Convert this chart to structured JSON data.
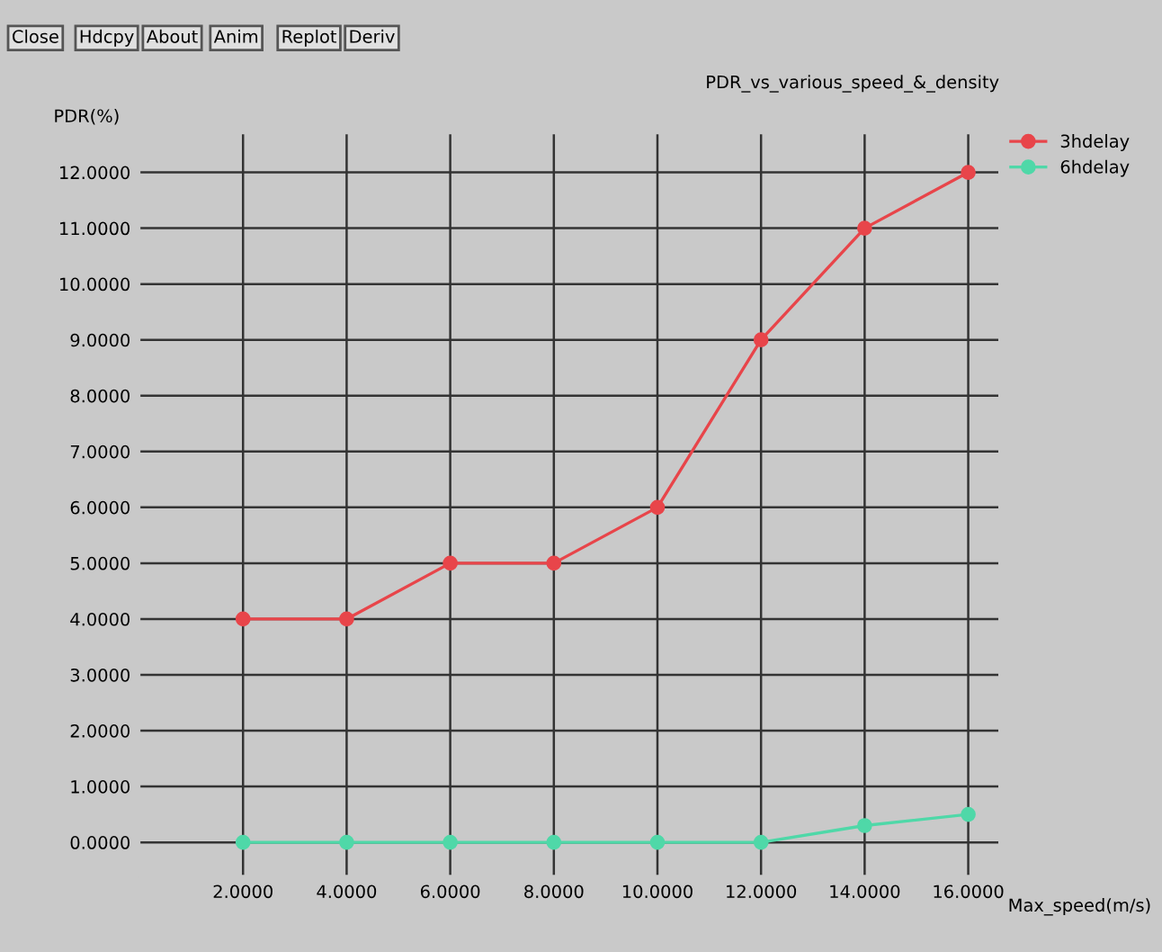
{
  "chart_data": {
    "type": "line",
    "title": "PDR_vs_various_speed_&_density",
    "xlabel": "Max_speed(m/s)",
    "ylabel": "PDR(%)",
    "x": [
      2,
      4,
      6,
      8,
      10,
      12,
      14,
      16
    ],
    "series": [
      {
        "name": "3hdelay",
        "color": "#e8454a",
        "values": [
          4,
          4,
          5,
          5,
          6,
          9,
          11,
          12
        ]
      },
      {
        "name": "6hdelay",
        "color": "#4fd8a8",
        "values": [
          0,
          0,
          0,
          0,
          0,
          0,
          0.3,
          0.5
        ]
      }
    ],
    "xlim": [
      0,
      16.6
    ],
    "ylim": [
      -0.6,
      12.7
    ],
    "xticks": [
      {
        "value": 2,
        "label": "2.0000"
      },
      {
        "value": 4,
        "label": "4.0000"
      },
      {
        "value": 6,
        "label": "6.0000"
      },
      {
        "value": 8,
        "label": "8.0000"
      },
      {
        "value": 10,
        "label": "10.0000"
      },
      {
        "value": 12,
        "label": "12.0000"
      },
      {
        "value": 14,
        "label": "14.0000"
      },
      {
        "value": 16,
        "label": "16.0000"
      }
    ],
    "yticks": [
      {
        "value": 0,
        "label": "0.0000"
      },
      {
        "value": 1,
        "label": "1.0000"
      },
      {
        "value": 2,
        "label": "2.0000"
      },
      {
        "value": 3,
        "label": "3.0000"
      },
      {
        "value": 4,
        "label": "4.0000"
      },
      {
        "value": 5,
        "label": "5.0000"
      },
      {
        "value": 6,
        "label": "6.0000"
      },
      {
        "value": 7,
        "label": "7.0000"
      },
      {
        "value": 8,
        "label": "8.0000"
      },
      {
        "value": 9,
        "label": "9.0000"
      },
      {
        "value": 10,
        "label": "10.0000"
      },
      {
        "value": 11,
        "label": "11.0000"
      },
      {
        "value": 12,
        "label": "12.0000"
      }
    ],
    "grid": true,
    "legend": "top right",
    "marker": "circle",
    "line_style": "solid",
    "annotations": [
      "Close",
      "Hdcpy",
      "About",
      "Anim",
      "Replot",
      "Deriv"
    ]
  }
}
